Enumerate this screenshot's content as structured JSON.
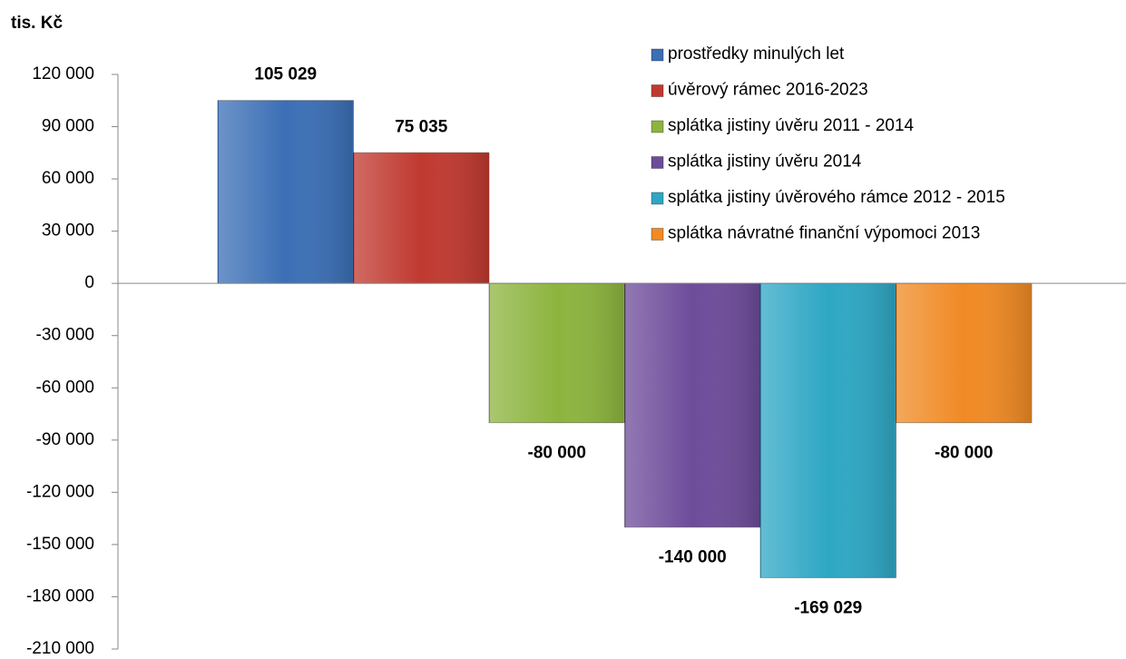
{
  "chart_data": {
    "type": "bar",
    "y_label": "tis. Kč",
    "categories": [
      null
    ],
    "series": [
      {
        "name": "prostředky minulých let",
        "color": "#3b6fb6",
        "values": [
          105029
        ],
        "value_labels": [
          "105 029"
        ]
      },
      {
        "name": "úvěrový rámec 2016-2023",
        "color": "#c0392f",
        "values": [
          75035
        ],
        "value_labels": [
          "75 035"
        ]
      },
      {
        "name": "splátka jistiny úvěru 2011 - 2014",
        "color": "#8db43e",
        "values": [
          -80000
        ],
        "value_labels": [
          "-80 000"
        ]
      },
      {
        "name": "splátka jistiny úvěru 2014",
        "color": "#6d4c9a",
        "values": [
          -140000
        ],
        "value_labels": [
          "-140 000"
        ]
      },
      {
        "name": "splátka jistiny úvěrového rámce 2012 - 2015",
        "color": "#2ea7c4",
        "values": [
          -169029
        ],
        "value_labels": [
          "-169 029"
        ]
      },
      {
        "name": "splátka návratné finanční výpomoci 2013",
        "color": "#f08a24",
        "values": [
          -80000
        ],
        "value_labels": [
          "-80 000"
        ]
      }
    ],
    "ylim": [
      -210000,
      120000
    ],
    "yticks": [
      {
        "value": 120000,
        "label": "120 000"
      },
      {
        "value": 90000,
        "label": "90 000"
      },
      {
        "value": 60000,
        "label": "60 000"
      },
      {
        "value": 30000,
        "label": "30 000"
      },
      0,
      {
        "value": -30000,
        "label": "-30 000"
      },
      {
        "value": -60000,
        "label": "-60 000"
      },
      {
        "value": -90000,
        "label": "-90 000"
      },
      {
        "value": -120000,
        "label": "-120 000"
      },
      {
        "value": -150000,
        "label": "-150 000"
      },
      {
        "value": -180000,
        "label": "-180 000"
      },
      {
        "value": -210000,
        "label": "-210 000"
      }
    ],
    "legend": "top-right"
  }
}
